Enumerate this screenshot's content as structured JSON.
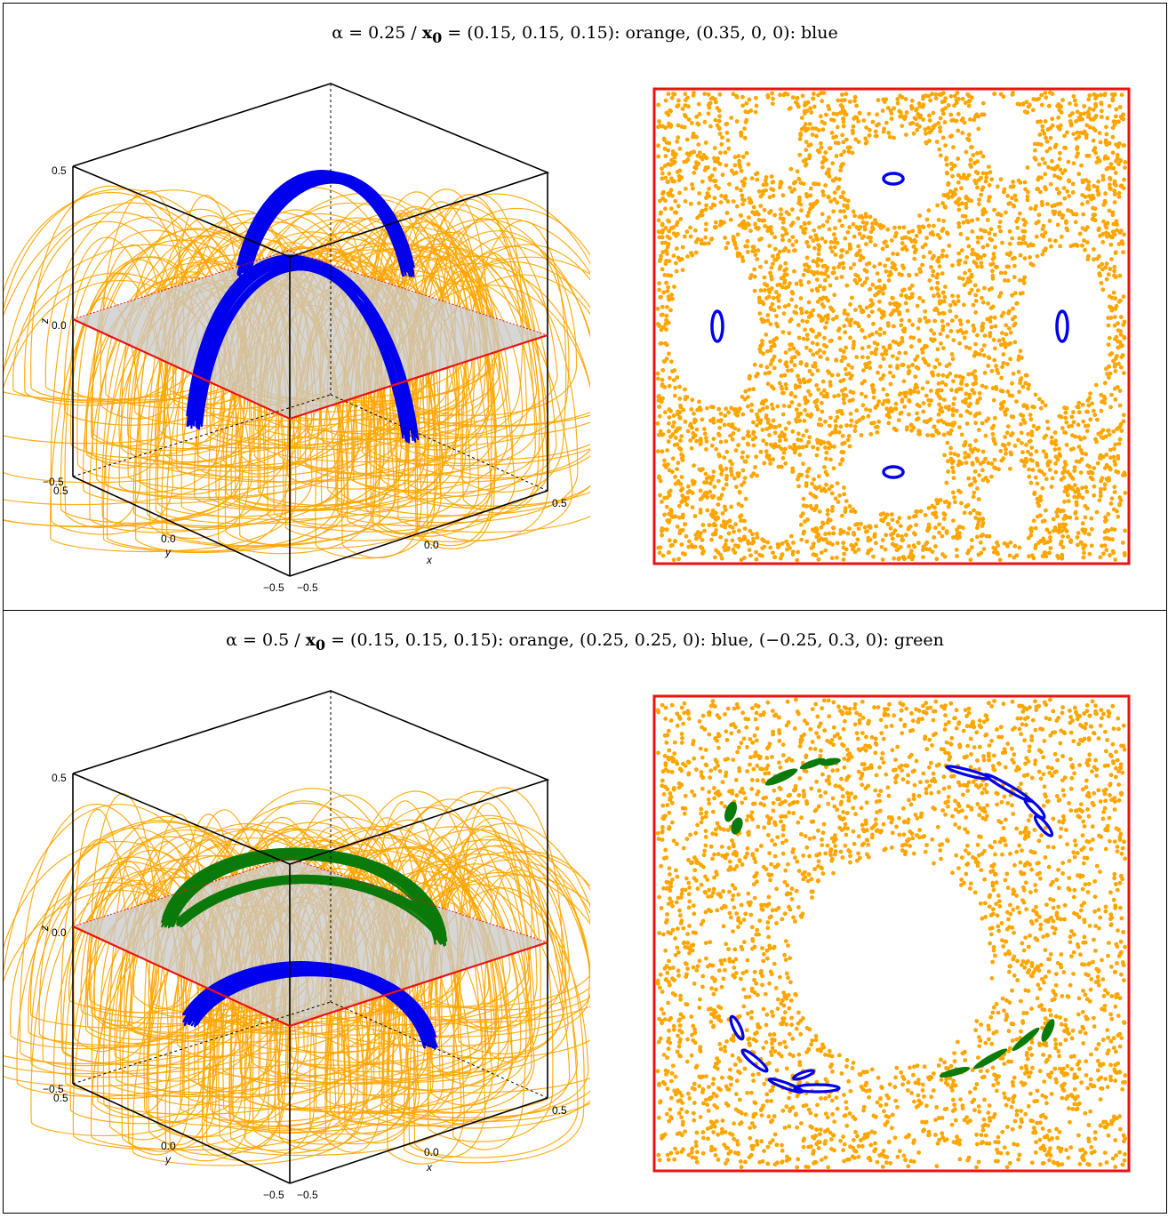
{
  "panels": [
    {
      "alpha_text": "α = 0.25",
      "sep": " / ",
      "x0_symbol": "x",
      "x0_sub": "0",
      "rest": " = (0.15, 0.15, 0.15): orange,  (0.35, 0, 0): blue",
      "axis_ticks": {
        "z_top": "0.5",
        "z_mid": "0.0",
        "z_bot": "−0.5",
        "y_top": "0.5",
        "y_mid": "0.0",
        "y_bot": "−0.5",
        "x_left": "−0.5",
        "x_mid": "0.0",
        "x_right": "0.5"
      },
      "axis_labels": {
        "x": "x",
        "y": "y",
        "z": "z"
      }
    },
    {
      "alpha_text": "α = 0.5",
      "sep": " / ",
      "x0_symbol": "x",
      "x0_sub": "0",
      "rest": " = (0.15, 0.15, 0.15): orange,  (0.25, 0.25, 0): blue,  (−0.25, 0.3, 0): green",
      "axis_ticks": {
        "z_top": "0.5",
        "z_mid": "0.0",
        "z_bot": "−0.5",
        "y_top": "0.5",
        "y_mid": "0.0",
        "y_bot": "−0.5",
        "x_left": "−0.5",
        "x_mid": "0.0",
        "x_right": "0.5"
      },
      "axis_labels": {
        "x": "x",
        "y": "y",
        "z": "z"
      }
    }
  ],
  "colors": {
    "orange": "#ffa500",
    "blue": "#0000ee",
    "green": "#0a7a0a",
    "frame": "#ee1111",
    "plane": "#c8c8c8"
  }
}
